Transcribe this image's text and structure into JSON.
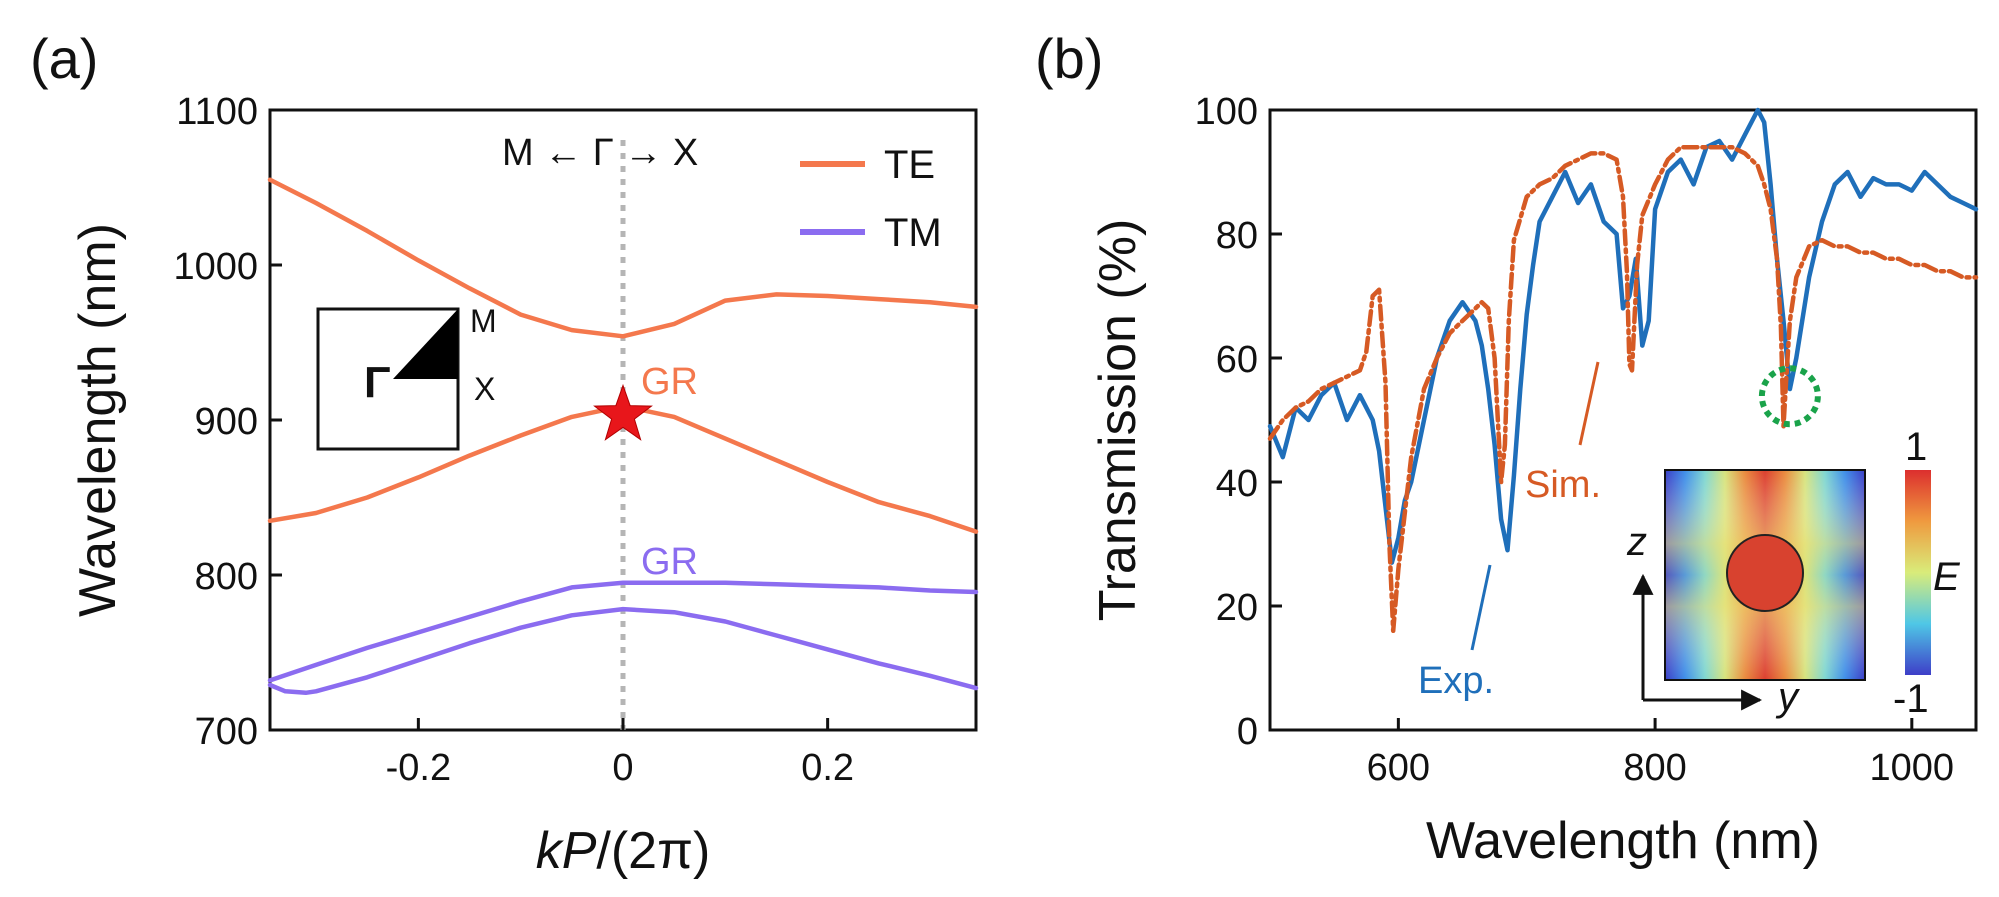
{
  "chart_data": [
    {
      "panel": "(a)",
      "type": "line",
      "xlabel_italic": "kP",
      "xlabel_rest": "/(2π)",
      "ylabel": "Wavelength (nm)",
      "xlim": [
        -0.345,
        0.345
      ],
      "ylim": [
        700,
        1100
      ],
      "xticks": [
        -0.2,
        0,
        0.2
      ],
      "xtick_labels": [
        "-0.2",
        "0",
        "0.2"
      ],
      "yticks": [
        700,
        800,
        900,
        1000,
        1100
      ],
      "ytick_labels": [
        "700",
        "800",
        "900",
        "1000",
        "1100"
      ],
      "direction_label": "M ← Γ → X",
      "legend": [
        {
          "name": "TE",
          "color": "#f4784d"
        },
        {
          "name": "TM",
          "color": "#8b6cf0"
        }
      ],
      "annotations": {
        "gr_te": "GR",
        "gr_tm": "GR"
      },
      "inset_labels": {
        "gamma": "Γ",
        "m": "M",
        "x": "X"
      },
      "gamma_line_x": 0,
      "star_point": {
        "x": 0,
        "y": 903,
        "color": "#e8161b"
      },
      "series": [
        {
          "name": "TE upper",
          "color": "#f4784d",
          "x": [
            -0.345,
            -0.3,
            -0.25,
            -0.2,
            -0.15,
            -0.1,
            -0.05,
            0,
            0.05,
            0.1,
            0.15,
            0.2,
            0.25,
            0.3,
            0.345
          ],
          "y": [
            1055,
            1040,
            1022,
            1003,
            985,
            968,
            958,
            954,
            962,
            977,
            981,
            980,
            978,
            976,
            973
          ]
        },
        {
          "name": "TE lower",
          "color": "#f4784d",
          "x": [
            -0.345,
            -0.3,
            -0.25,
            -0.2,
            -0.15,
            -0.1,
            -0.05,
            0,
            0.05,
            0.1,
            0.15,
            0.2,
            0.25,
            0.3,
            0.345
          ],
          "y": [
            835,
            840,
            850,
            863,
            877,
            890,
            902,
            909,
            902,
            888,
            874,
            860,
            847,
            838,
            828
          ]
        },
        {
          "name": "TM upper",
          "color": "#8b6cf0",
          "x": [
            -0.345,
            -0.3,
            -0.25,
            -0.2,
            -0.15,
            -0.1,
            -0.05,
            0,
            0.05,
            0.1,
            0.15,
            0.2,
            0.25,
            0.3,
            0.345
          ],
          "y": [
            732,
            742,
            753,
            763,
            773,
            783,
            792,
            795,
            795,
            795,
            794,
            793,
            792,
            790,
            789
          ]
        },
        {
          "name": "TM lower",
          "color": "#8b6cf0",
          "x": [
            -0.345,
            -0.33,
            -0.31,
            -0.3,
            -0.25,
            -0.2,
            -0.15,
            -0.1,
            -0.05,
            0,
            0.05,
            0.1,
            0.15,
            0.2,
            0.25,
            0.3,
            0.345
          ],
          "y": [
            729,
            725,
            724,
            725,
            734,
            745,
            756,
            766,
            774,
            778,
            776,
            770,
            761,
            752,
            743,
            735,
            727
          ]
        }
      ]
    },
    {
      "panel": "(b)",
      "type": "line",
      "xlabel": "Wavelength (nm)",
      "ylabel": "Transmission (%)",
      "xlim": [
        500,
        1050
      ],
      "ylim": [
        0,
        100
      ],
      "xticks": [
        600,
        800,
        1000
      ],
      "xtick_labels": [
        "600",
        "800",
        "1000"
      ],
      "yticks": [
        0,
        20,
        40,
        60,
        80,
        100
      ],
      "ytick_labels": [
        "0",
        "20",
        "40",
        "60",
        "80",
        "100"
      ],
      "annotations": {
        "exp": "Exp.",
        "sim": "Sim."
      },
      "inset": {
        "scale_max": "1",
        "scale_min": "-1",
        "field_label": "E",
        "axis_z": "z",
        "axis_y": "y"
      },
      "circle_marker": {
        "x": 905,
        "y": 49,
        "color": "#1aa34a"
      },
      "series": [
        {
          "name": "Exp.",
          "color": "#1f6fba",
          "style": "solid",
          "x": [
            500,
            510,
            520,
            530,
            540,
            550,
            560,
            570,
            580,
            585,
            590,
            595,
            600,
            605,
            610,
            620,
            630,
            640,
            650,
            660,
            665,
            670,
            675,
            680,
            685,
            690,
            695,
            700,
            705,
            710,
            720,
            730,
            740,
            750,
            760,
            770,
            775,
            780,
            785,
            790,
            795,
            800,
            810,
            820,
            830,
            840,
            850,
            860,
            870,
            880,
            885,
            890,
            895,
            900,
            905,
            910,
            920,
            930,
            940,
            950,
            960,
            970,
            980,
            990,
            1000,
            1010,
            1020,
            1030,
            1040,
            1050
          ],
          "y": [
            49,
            44,
            52,
            50,
            54,
            56,
            50,
            54,
            50,
            45,
            36,
            27,
            31,
            37,
            40,
            50,
            60,
            66,
            69,
            66,
            62,
            55,
            46,
            34,
            29,
            41,
            55,
            67,
            75,
            82,
            86,
            90,
            85,
            88,
            82,
            80,
            68,
            70,
            76,
            62,
            66,
            84,
            90,
            92,
            88,
            94,
            95,
            92,
            96,
            100,
            98,
            88,
            76,
            66,
            55,
            60,
            73,
            82,
            88,
            90,
            86,
            89,
            88,
            88,
            87,
            90,
            88,
            86,
            85,
            84
          ]
        },
        {
          "name": "Sim.",
          "color": "#d65a24",
          "style": "dashdot",
          "x": [
            500,
            510,
            520,
            530,
            540,
            550,
            560,
            570,
            575,
            580,
            585,
            590,
            593,
            596,
            600,
            610,
            620,
            630,
            640,
            650,
            660,
            665,
            670,
            675,
            680,
            683,
            686,
            690,
            700,
            710,
            720,
            730,
            740,
            750,
            760,
            770,
            775,
            778,
            780,
            782,
            786,
            790,
            800,
            810,
            820,
            830,
            840,
            850,
            860,
            870,
            880,
            885,
            890,
            895,
            898,
            900,
            902,
            905,
            910,
            920,
            930,
            940,
            950,
            960,
            970,
            980,
            990,
            1000,
            1010,
            1020,
            1030,
            1040,
            1050
          ],
          "y": [
            47,
            50,
            52,
            53,
            55,
            56,
            57,
            58,
            61,
            70,
            71,
            56,
            30,
            16,
            26,
            44,
            55,
            60,
            64,
            66,
            68,
            69,
            68,
            60,
            40,
            46,
            66,
            79,
            86,
            88,
            89,
            91,
            92,
            93,
            93,
            92,
            86,
            74,
            59,
            58,
            75,
            83,
            88,
            92,
            94,
            94,
            94,
            94,
            94,
            93,
            91,
            88,
            84,
            76,
            65,
            49,
            56,
            66,
            73,
            78,
            79,
            78,
            78,
            77,
            77,
            76,
            76,
            75,
            75,
            74,
            74,
            73,
            73
          ]
        }
      ]
    }
  ]
}
